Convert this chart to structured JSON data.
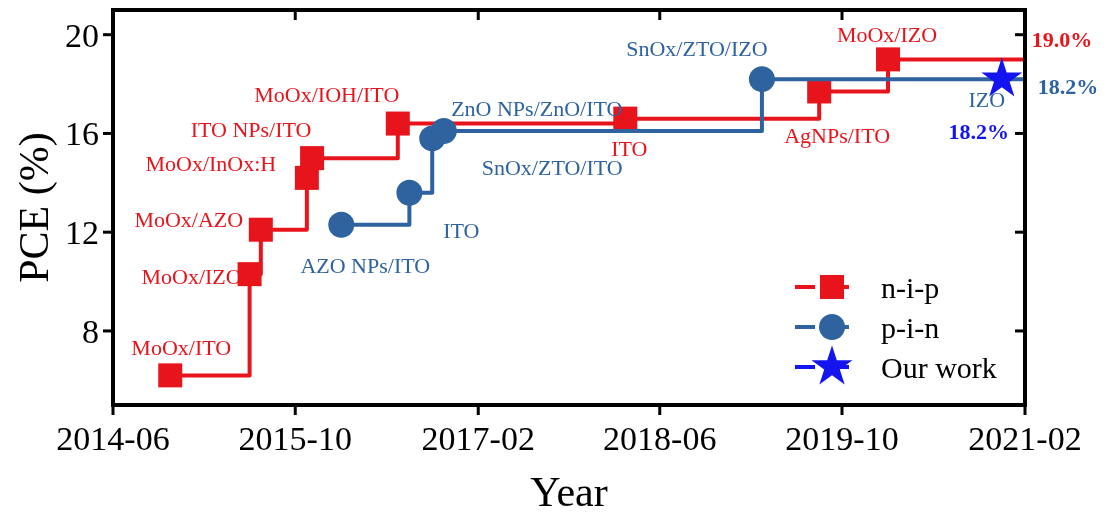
{
  "chart_data": {
    "type": "step",
    "xlabel": "Year",
    "ylabel": "PCE (%)",
    "xlim": [
      "2014-06",
      "2021-02"
    ],
    "xticks": [
      "2014-06",
      "2015-10",
      "2017-02",
      "2018-06",
      "2019-10",
      "2021-02"
    ],
    "ylim": [
      5,
      21
    ],
    "yticks": [
      8,
      12,
      16,
      20
    ],
    "legend": "bottom right",
    "grid": false,
    "series": [
      {
        "name": "n-i-p",
        "color": "#e8141b",
        "marker": "square",
        "x": [
          "2014-11",
          "2015-06",
          "2015-07",
          "2015-11",
          "2015-11-15",
          "2016-07",
          "2018-03",
          "2019-08",
          "2020-02",
          "2021-02"
        ],
        "values": [
          6.2,
          10.3,
          12.1,
          14.2,
          15.0,
          16.4,
          16.6,
          17.7,
          19.0,
          19.0
        ]
      },
      {
        "name": "p-i-n",
        "color": "#2e63a0",
        "marker": "circle",
        "x": [
          "2016-02",
          "2016-08",
          "2016-10",
          "2016-11",
          "2019-03",
          "2021-02"
        ],
        "values": [
          12.3,
          13.6,
          15.8,
          16.1,
          18.2,
          18.2
        ]
      },
      {
        "name": "Our work",
        "type": "scatter",
        "color": "#1414f0",
        "marker": "star",
        "x": [
          "2020-12"
        ],
        "values": [
          18.2
        ]
      }
    ],
    "annotations": [
      {
        "text": "MoOx/ITO",
        "x": "2014-11",
        "y": 6.2
      },
      {
        "text": "MoOx/IZO",
        "x": "2015-06",
        "y": 10.3
      },
      {
        "text": "MoOx/AZO",
        "x": "2015-07",
        "y": 12.1
      },
      {
        "text": "MoOx/InOx:H",
        "x": "2015-11",
        "y": 14.2
      },
      {
        "text": "ITO NPs/ITO",
        "x": "2015-11-15",
        "y": 15.0
      },
      {
        "text": "MoOx/IOH/ITO",
        "x": "2016-07",
        "y": 16.4
      },
      {
        "text": "ITO",
        "x": "2018-03",
        "y": 16.6
      },
      {
        "text": "AgNPs/ITO",
        "x": "2019-08",
        "y": 17.7
      },
      {
        "text": "MoOx/IZO",
        "x": "2020-02",
        "y": 19.0
      },
      {
        "text": "19.0%",
        "x": "2021-02",
        "y": 19.0
      },
      {
        "text": "AZO NPs/ITO",
        "x": "2016-02",
        "y": 12.3
      },
      {
        "text": "ITO",
        "x": "2016-08",
        "y": 13.6
      },
      {
        "text": "SnOx/ZTO/ITO",
        "x": "2016-10",
        "y": 15.8
      },
      {
        "text": "ZnO NPs/ZnO/ITO",
        "x": "2016-11",
        "y": 16.1
      },
      {
        "text": "SnOx/ZTO/IZO",
        "x": "2019-03",
        "y": 18.2
      },
      {
        "text": "18.2%",
        "x": "2021-02",
        "y": 18.2
      },
      {
        "text": "IZO",
        "x": "2020-12",
        "y": 18.2
      },
      {
        "text": "18.2%",
        "x": "2020-12",
        "y": 18.2
      }
    ]
  }
}
